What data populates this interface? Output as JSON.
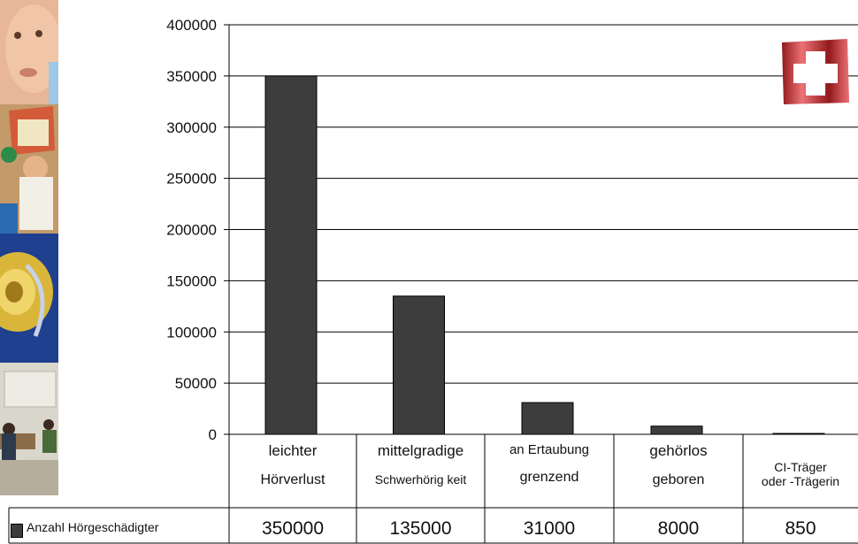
{
  "chart_data": {
    "type": "bar",
    "categories": [
      [
        "leichter",
        "Hörverlust"
      ],
      [
        "mittelgradige",
        "Schwerhörig keit"
      ],
      [
        "an Ertaubung",
        "grenzend"
      ],
      [
        "gehörlos",
        "geboren"
      ],
      [
        "CI-Träger",
        "oder -Trägerin"
      ]
    ],
    "series": [
      {
        "name": "Anzahl Hörgeschädigter",
        "values": [
          350000,
          135000,
          31000,
          8000,
          850
        ]
      }
    ],
    "ylim": [
      0,
      400000
    ],
    "yticks": [
      0,
      50000,
      100000,
      150000,
      200000,
      250000,
      300000,
      350000,
      400000
    ],
    "grid": true,
    "bar_color": "#3d3d3d",
    "legend_position": "bottom-left table"
  },
  "table_values": [
    "350000",
    "135000",
    "31000",
    "8000",
    "850"
  ],
  "flag": {
    "name": "swiss-flag",
    "color": "#e0262b"
  }
}
